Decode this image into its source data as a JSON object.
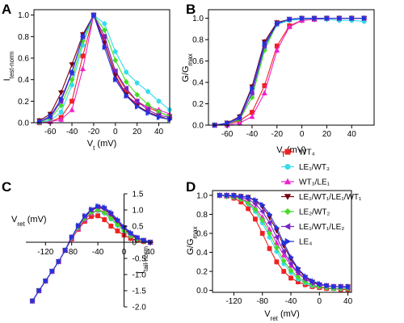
{
  "figure": {
    "legend": {
      "placement": "right-middle",
      "entries": [
        {
          "label": "WT₄",
          "color": "#ee2222",
          "marker": "square"
        },
        {
          "label": "LE₁/WT₃",
          "color": "#33ddee",
          "marker": "circle"
        },
        {
          "label": "WT₃/LE₁",
          "color": "#ee22cc",
          "marker": "triangle-up"
        },
        {
          "label": "LE₁/WT₁/LE₁/WT₁",
          "color": "#770011",
          "marker": "triangle-down"
        },
        {
          "label": "LE₂/WT₂",
          "color": "#44dd22",
          "marker": "diamond"
        },
        {
          "label": "LE₁/WT₁/LE₂",
          "color": "#7722cc",
          "marker": "triangle-left"
        },
        {
          "label": "LE₄",
          "color": "#2233dd",
          "marker": "triangle-right"
        }
      ]
    }
  },
  "chart_data": [
    {
      "panel": "A",
      "type": "line",
      "xlabel": "Vt (mV)",
      "ylabel": "Itest-norm",
      "xlim": [
        -75,
        50
      ],
      "ylim": [
        0,
        1.05
      ],
      "xticks": [
        -60,
        -40,
        -20,
        0,
        20,
        40
      ],
      "xtick_labels": [
        "-60",
        "-40",
        "-20",
        "0",
        "20",
        "40"
      ],
      "yticks": [
        0.0,
        0.2,
        0.4,
        0.6,
        0.8,
        1.0
      ],
      "ytick_labels": [
        "0.0",
        "0.2",
        "0.4",
        "0.6",
        "0.8",
        "1.0"
      ],
      "x": [
        -70,
        -60,
        -50,
        -40,
        -30,
        -20,
        -10,
        0,
        10,
        20,
        30,
        40,
        50
      ],
      "series": [
        {
          "name": "WT₄",
          "values": [
            0.0,
            0.01,
            0.05,
            0.2,
            0.62,
            1.0,
            0.8,
            0.47,
            0.3,
            0.2,
            0.14,
            0.1,
            0.06
          ]
        },
        {
          "name": "LE₁/WT₃",
          "values": [
            0.0,
            0.02,
            0.1,
            0.35,
            0.72,
            1.0,
            0.92,
            0.66,
            0.47,
            0.37,
            0.29,
            0.2,
            0.12
          ]
        },
        {
          "name": "WT₃/LE₁",
          "values": [
            0.0,
            0.01,
            0.03,
            0.12,
            0.5,
            1.0,
            0.76,
            0.42,
            0.25,
            0.18,
            0.15,
            0.12,
            0.08
          ]
        },
        {
          "name": "LE₁/WT₁/LE₁/WT₁",
          "values": [
            0.02,
            0.08,
            0.28,
            0.54,
            0.82,
            1.0,
            0.74,
            0.44,
            0.26,
            0.16,
            0.1,
            0.06,
            0.03
          ]
        },
        {
          "name": "LE₂/WT₂",
          "values": [
            0.0,
            0.04,
            0.16,
            0.4,
            0.76,
            1.0,
            0.86,
            0.58,
            0.38,
            0.26,
            0.17,
            0.1,
            0.06
          ]
        },
        {
          "name": "LE₁/WT₁/LE₂",
          "values": [
            0.01,
            0.05,
            0.2,
            0.46,
            0.8,
            1.0,
            0.8,
            0.48,
            0.32,
            0.2,
            0.12,
            0.07,
            0.05
          ]
        },
        {
          "name": "LE₄",
          "values": [
            0.01,
            0.06,
            0.22,
            0.47,
            0.8,
            1.0,
            0.7,
            0.4,
            0.25,
            0.15,
            0.09,
            0.05,
            0.03
          ]
        }
      ]
    },
    {
      "panel": "B",
      "type": "line",
      "xlabel": "Vt (mV)",
      "ylabel": "G/Gmax",
      "xlim": [
        -75,
        58
      ],
      "ylim": [
        0,
        1.08
      ],
      "xticks": [
        -60,
        -40,
        -20,
        0,
        20,
        40
      ],
      "xtick_labels": [
        "-60",
        "-40",
        "-20",
        "0",
        "20",
        "40"
      ],
      "yticks": [
        0.0,
        0.2,
        0.4,
        0.6,
        0.8,
        1.0
      ],
      "ytick_labels": [
        "0.0",
        "0.2",
        "0.4",
        "0.6",
        "0.8",
        "1.0"
      ],
      "x": [
        -70,
        -60,
        -50,
        -40,
        -30,
        -20,
        -10,
        0,
        10,
        20,
        30,
        40,
        50
      ],
      "series": [
        {
          "name": "WT₄",
          "values": [
            0.0,
            0.01,
            0.04,
            0.12,
            0.37,
            0.74,
            0.93,
            0.98,
            0.99,
            1.0,
            1.0,
            1.0,
            1.0
          ]
        },
        {
          "name": "LE₁/WT₃",
          "values": [
            0.0,
            0.01,
            0.06,
            0.3,
            0.72,
            0.94,
            0.98,
            0.99,
            0.99,
            0.99,
            0.98,
            0.98,
            0.97
          ]
        },
        {
          "name": "WT₃/LE₁",
          "values": [
            0.0,
            0.0,
            0.02,
            0.08,
            0.3,
            0.7,
            0.92,
            0.98,
            0.99,
            1.0,
            1.0,
            1.0,
            1.0
          ]
        },
        {
          "name": "LE₁/WT₁/LE₁/WT₁",
          "values": [
            0.0,
            0.02,
            0.08,
            0.36,
            0.78,
            0.96,
            0.99,
            1.0,
            1.0,
            1.0,
            1.0,
            1.0,
            1.0
          ]
        },
        {
          "name": "LE₂/WT₂",
          "values": [
            0.0,
            0.01,
            0.05,
            0.26,
            0.7,
            0.95,
            0.99,
            1.0,
            1.0,
            1.0,
            1.0,
            1.0,
            1.0
          ]
        },
        {
          "name": "LE₁/WT₁/LE₂",
          "values": [
            0.0,
            0.01,
            0.06,
            0.3,
            0.74,
            0.95,
            0.99,
            1.0,
            1.0,
            1.0,
            1.0,
            1.0,
            1.0
          ]
        },
        {
          "name": "LE₄",
          "values": [
            0.0,
            0.02,
            0.07,
            0.34,
            0.76,
            0.95,
            0.99,
            1.0,
            1.0,
            1.0,
            1.0,
            1.0,
            1.0
          ]
        }
      ]
    },
    {
      "panel": "C",
      "type": "line",
      "xlabel": "Vret (mV)",
      "ylabel": "Itail-norm",
      "xlim": [
        -150,
        45
      ],
      "ylim": [
        -2.0,
        1.5
      ],
      "xticks": [
        -120,
        -80,
        -40,
        0,
        40
      ],
      "xtick_labels": [
        "-120",
        "-80",
        "-40",
        "0",
        "40"
      ],
      "yticks": [
        -2.0,
        -1.5,
        -1.0,
        -0.5,
        0.0,
        0.5,
        1.0,
        1.5
      ],
      "ytick_labels": [
        "-2.0",
        "-1.5",
        "-1.0",
        "-0.5",
        "0",
        "0.5",
        "1.0",
        "1.5"
      ],
      "x": [
        -140,
        -130,
        -120,
        -110,
        -100,
        -90,
        -80,
        -70,
        -60,
        -50,
        -40,
        -30,
        -20,
        -10,
        0,
        10,
        20,
        30,
        40
      ],
      "series": [
        {
          "name": "WT₄",
          "values": [
            -1.82,
            -1.5,
            -1.2,
            -0.9,
            -0.6,
            -0.25,
            0.1,
            0.4,
            0.65,
            0.8,
            0.82,
            0.7,
            0.5,
            0.35,
            0.22,
            0.12,
            0.06,
            0.02,
            0.0
          ]
        },
        {
          "name": "LE₁/WT₃",
          "values": [
            -1.82,
            -1.5,
            -1.2,
            -0.9,
            -0.6,
            -0.25,
            0.15,
            0.45,
            0.72,
            0.9,
            0.98,
            0.9,
            0.72,
            0.52,
            0.35,
            0.2,
            0.1,
            0.04,
            0.0
          ]
        },
        {
          "name": "WT₃/LE₁",
          "values": [
            -1.82,
            -1.5,
            -1.2,
            -0.9,
            -0.6,
            -0.25,
            0.12,
            0.42,
            0.7,
            0.9,
            1.0,
            0.95,
            0.8,
            0.6,
            0.4,
            0.25,
            0.12,
            0.05,
            0.0
          ]
        },
        {
          "name": "LE₁/WT₁/LE₁/WT₁",
          "values": [
            -1.82,
            -1.5,
            -1.2,
            -0.9,
            -0.6,
            -0.25,
            0.15,
            0.48,
            0.78,
            0.98,
            1.08,
            1.02,
            0.85,
            0.62,
            0.42,
            0.25,
            0.12,
            0.05,
            0.0
          ]
        },
        {
          "name": "LE₂/WT₂",
          "values": [
            -1.82,
            -1.5,
            -1.2,
            -0.9,
            -0.6,
            -0.25,
            0.14,
            0.46,
            0.74,
            0.92,
            1.0,
            0.92,
            0.74,
            0.54,
            0.36,
            0.2,
            0.1,
            0.04,
            0.0
          ]
        },
        {
          "name": "LE₁/WT₁/LE₂",
          "values": [
            -1.82,
            -1.5,
            -1.2,
            -0.9,
            -0.6,
            -0.25,
            0.16,
            0.5,
            0.8,
            1.0,
            1.1,
            1.05,
            0.88,
            0.66,
            0.45,
            0.27,
            0.14,
            0.06,
            0.0
          ]
        },
        {
          "name": "LE₄",
          "values": [
            -1.82,
            -1.5,
            -1.2,
            -0.9,
            -0.6,
            -0.25,
            0.16,
            0.52,
            0.82,
            1.02,
            1.12,
            1.08,
            0.92,
            0.7,
            0.48,
            0.3,
            0.15,
            0.06,
            0.0
          ]
        }
      ]
    },
    {
      "panel": "D",
      "type": "line",
      "xlabel": "Vret (mV)",
      "ylabel": "G/Gmax",
      "xlim": [
        -150,
        45
      ],
      "ylim": [
        -0.02,
        1.05
      ],
      "xticks": [
        -120,
        -80,
        -40,
        0,
        40
      ],
      "xtick_labels": [
        "-120",
        "-80",
        "-40",
        "0",
        "40"
      ],
      "yticks": [
        0.0,
        0.2,
        0.4,
        0.6,
        0.8,
        1.0
      ],
      "ytick_labels": [
        "0.0",
        "0.2",
        "0.4",
        "0.6",
        "0.8",
        "1.0"
      ],
      "x": [
        -140,
        -130,
        -120,
        -110,
        -100,
        -90,
        -80,
        -70,
        -60,
        -50,
        -40,
        -30,
        -20,
        -10,
        0,
        10,
        20,
        30,
        40
      ],
      "series": [
        {
          "name": "WT₄",
          "values": [
            1.0,
            0.99,
            0.97,
            0.93,
            0.86,
            0.75,
            0.6,
            0.44,
            0.3,
            0.2,
            0.13,
            0.09,
            0.06,
            0.04,
            0.03,
            0.02,
            0.02,
            0.01,
            0.01
          ]
        },
        {
          "name": "LE₁/WT₃",
          "values": [
            1.0,
            0.99,
            0.98,
            0.96,
            0.91,
            0.83,
            0.71,
            0.56,
            0.41,
            0.28,
            0.19,
            0.12,
            0.08,
            0.05,
            0.04,
            0.03,
            0.02,
            0.02,
            0.02
          ]
        },
        {
          "name": "WT₃/LE₁",
          "values": [
            1.0,
            1.0,
            0.99,
            0.97,
            0.93,
            0.87,
            0.77,
            0.64,
            0.5,
            0.37,
            0.26,
            0.18,
            0.12,
            0.08,
            0.06,
            0.05,
            0.04,
            0.04,
            0.03
          ]
        },
        {
          "name": "LE₁/WT₁/LE₁/WT₁",
          "values": [
            1.0,
            1.0,
            1.0,
            0.99,
            0.98,
            0.94,
            0.88,
            0.77,
            0.63,
            0.47,
            0.33,
            0.22,
            0.14,
            0.09,
            0.06,
            0.05,
            0.04,
            0.04,
            0.04
          ]
        },
        {
          "name": "LE₂/WT₂",
          "values": [
            1.0,
            0.99,
            0.98,
            0.96,
            0.92,
            0.85,
            0.74,
            0.6,
            0.45,
            0.31,
            0.21,
            0.14,
            0.09,
            0.06,
            0.04,
            0.03,
            0.02,
            0.02,
            0.02
          ]
        },
        {
          "name": "LE₁/WT₁/LE₂",
          "values": [
            1.0,
            1.0,
            0.99,
            0.98,
            0.96,
            0.91,
            0.83,
            0.71,
            0.56,
            0.41,
            0.28,
            0.19,
            0.12,
            0.08,
            0.06,
            0.05,
            0.04,
            0.04,
            0.03
          ]
        },
        {
          "name": "LE₄",
          "values": [
            1.0,
            1.0,
            1.0,
            0.99,
            0.98,
            0.95,
            0.9,
            0.8,
            0.66,
            0.5,
            0.35,
            0.23,
            0.15,
            0.1,
            0.07,
            0.05,
            0.04,
            0.04,
            0.04
          ]
        }
      ]
    }
  ]
}
